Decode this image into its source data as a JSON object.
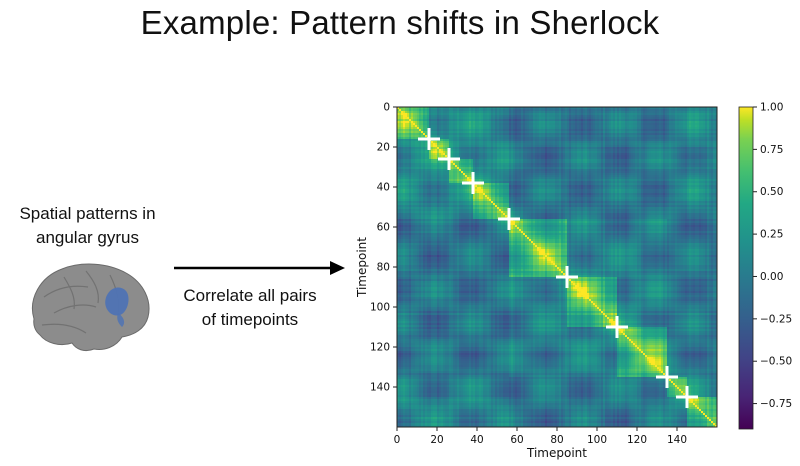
{
  "title": "Example: Pattern shifts in Sherlock",
  "left_caption": {
    "line1": "Spatial patterns in",
    "line2": "angular gyrus"
  },
  "arrow_caption": {
    "line1": "Correlate all pairs",
    "line2": "of timepoints"
  },
  "icons": {
    "brain": "brain-icon",
    "arrow": "right-arrow-icon",
    "event_boundary_marker": "white-cross-marker"
  },
  "colors": {
    "cmap_low": "#440154",
    "cmap_mid": "#21918c",
    "cmap_high": "#fde725",
    "brain_gray": "#8c8c8c",
    "brain_region": "#4f73b4"
  },
  "chart_data": {
    "type": "heatmap",
    "title": "",
    "xlabel": "Timepoint",
    "ylabel": "Timepoint",
    "n": 160,
    "xlim": [
      0,
      160
    ],
    "ylim": [
      0,
      160
    ],
    "y_inverted": true,
    "xticks": [
      0,
      20,
      40,
      60,
      80,
      100,
      120,
      140
    ],
    "yticks": [
      0,
      20,
      40,
      60,
      80,
      100,
      120,
      140
    ],
    "colormap": "viridis",
    "value_range": [
      -0.9,
      1.0
    ],
    "colorbar_ticks": [
      "1.00",
      "0.75",
      "0.50",
      "0.25",
      "0.00",
      "−0.25",
      "−0.50",
      "−0.75"
    ],
    "colorbar_tick_values": [
      1.0,
      0.75,
      0.5,
      0.25,
      0.0,
      -0.25,
      -0.5,
      -0.75
    ],
    "event_boundaries": [
      16,
      26,
      38,
      56,
      85,
      110,
      135,
      145
    ],
    "diagonal_value": 1.0,
    "grid": false
  }
}
